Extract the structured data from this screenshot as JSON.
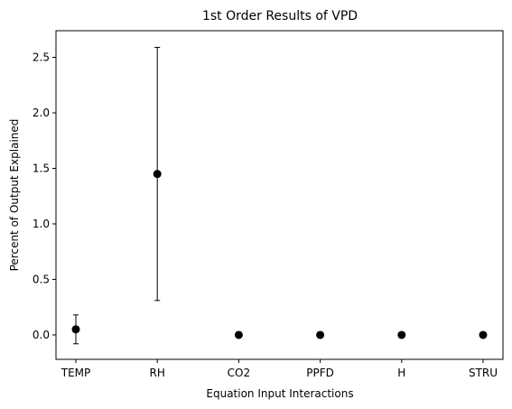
{
  "chart_data": {
    "type": "scatter",
    "title": "1st Order Results of VPD",
    "xlabel": "Equation Input Interactions",
    "ylabel": "Percent of Output Explained",
    "categories": [
      "TEMP",
      "RH",
      "CO2",
      "PPFD",
      "H",
      "STRU"
    ],
    "values": [
      0.05,
      1.45,
      0.0,
      0.0,
      0.0,
      0.0
    ],
    "error": [
      0.13,
      1.14,
      0.0,
      0.0,
      0.0,
      0.0
    ],
    "ylim": [
      -0.22,
      2.74
    ],
    "yticks": [
      0.0,
      0.5,
      1.0,
      1.5,
      2.0,
      2.5
    ],
    "ytick_labels": [
      "0.0",
      "0.5",
      "1.0",
      "1.5",
      "2.0",
      "2.5"
    ],
    "grid": false,
    "marker_color": "#000000",
    "error_bar_color": "#000000"
  }
}
